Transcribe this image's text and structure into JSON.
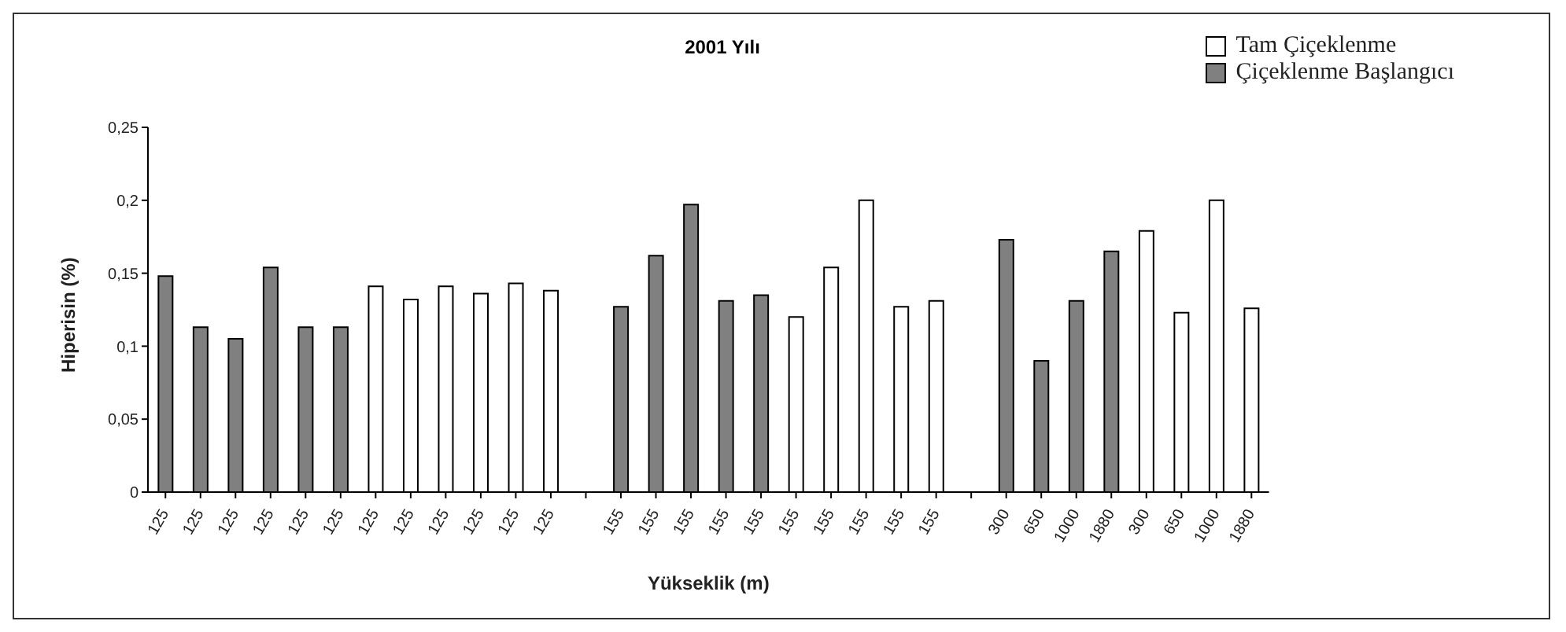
{
  "chart_data": {
    "type": "bar",
    "title": "2001 Yılı",
    "xlabel": "Yükseklik (m)",
    "ylabel": "Hiperisin (%)",
    "categories": [
      "125",
      "125",
      "125",
      "125",
      "125",
      "125",
      "125",
      "125",
      "125",
      "125",
      "125",
      "125",
      null,
      "155",
      "155",
      "155",
      "155",
      "155",
      "155",
      "155",
      "155",
      "155",
      "155",
      null,
      "300",
      "650",
      "1000",
      "1880",
      "300",
      "650",
      "1000",
      "1880"
    ],
    "series": [
      {
        "name": "Çiçeklenme Başlangıcı",
        "color": "#808080",
        "values": [
          0.148,
          0.113,
          0.105,
          0.154,
          0.113,
          0.113,
          null,
          null,
          null,
          null,
          null,
          null,
          null,
          0.127,
          0.162,
          0.197,
          0.131,
          0.135,
          null,
          null,
          null,
          null,
          null,
          null,
          0.173,
          0.09,
          0.131,
          0.165,
          null,
          null,
          null,
          null
        ]
      },
      {
        "name": "Tam Çiçeklenme",
        "color": "#ffffff",
        "values": [
          null,
          null,
          null,
          null,
          null,
          null,
          0.141,
          0.132,
          0.141,
          0.136,
          0.143,
          0.138,
          null,
          null,
          null,
          null,
          null,
          null,
          0.12,
          0.154,
          0.2,
          0.127,
          0.131,
          null,
          null,
          null,
          null,
          null,
          0.179,
          0.123,
          0.2,
          0.126
        ]
      }
    ],
    "ylim": [
      0,
      0.25
    ],
    "yticks": [
      0,
      {
        "value": 0.05,
        "label": "0,05"
      },
      {
        "value": 0.1,
        "label": "0,1"
      },
      {
        "value": 0.15,
        "label": "0,15"
      },
      {
        "value": 0.2,
        "label": "0,2"
      },
      {
        "value": 0.25,
        "label": "0,25"
      }
    ],
    "grid": false,
    "legend": "top right"
  }
}
